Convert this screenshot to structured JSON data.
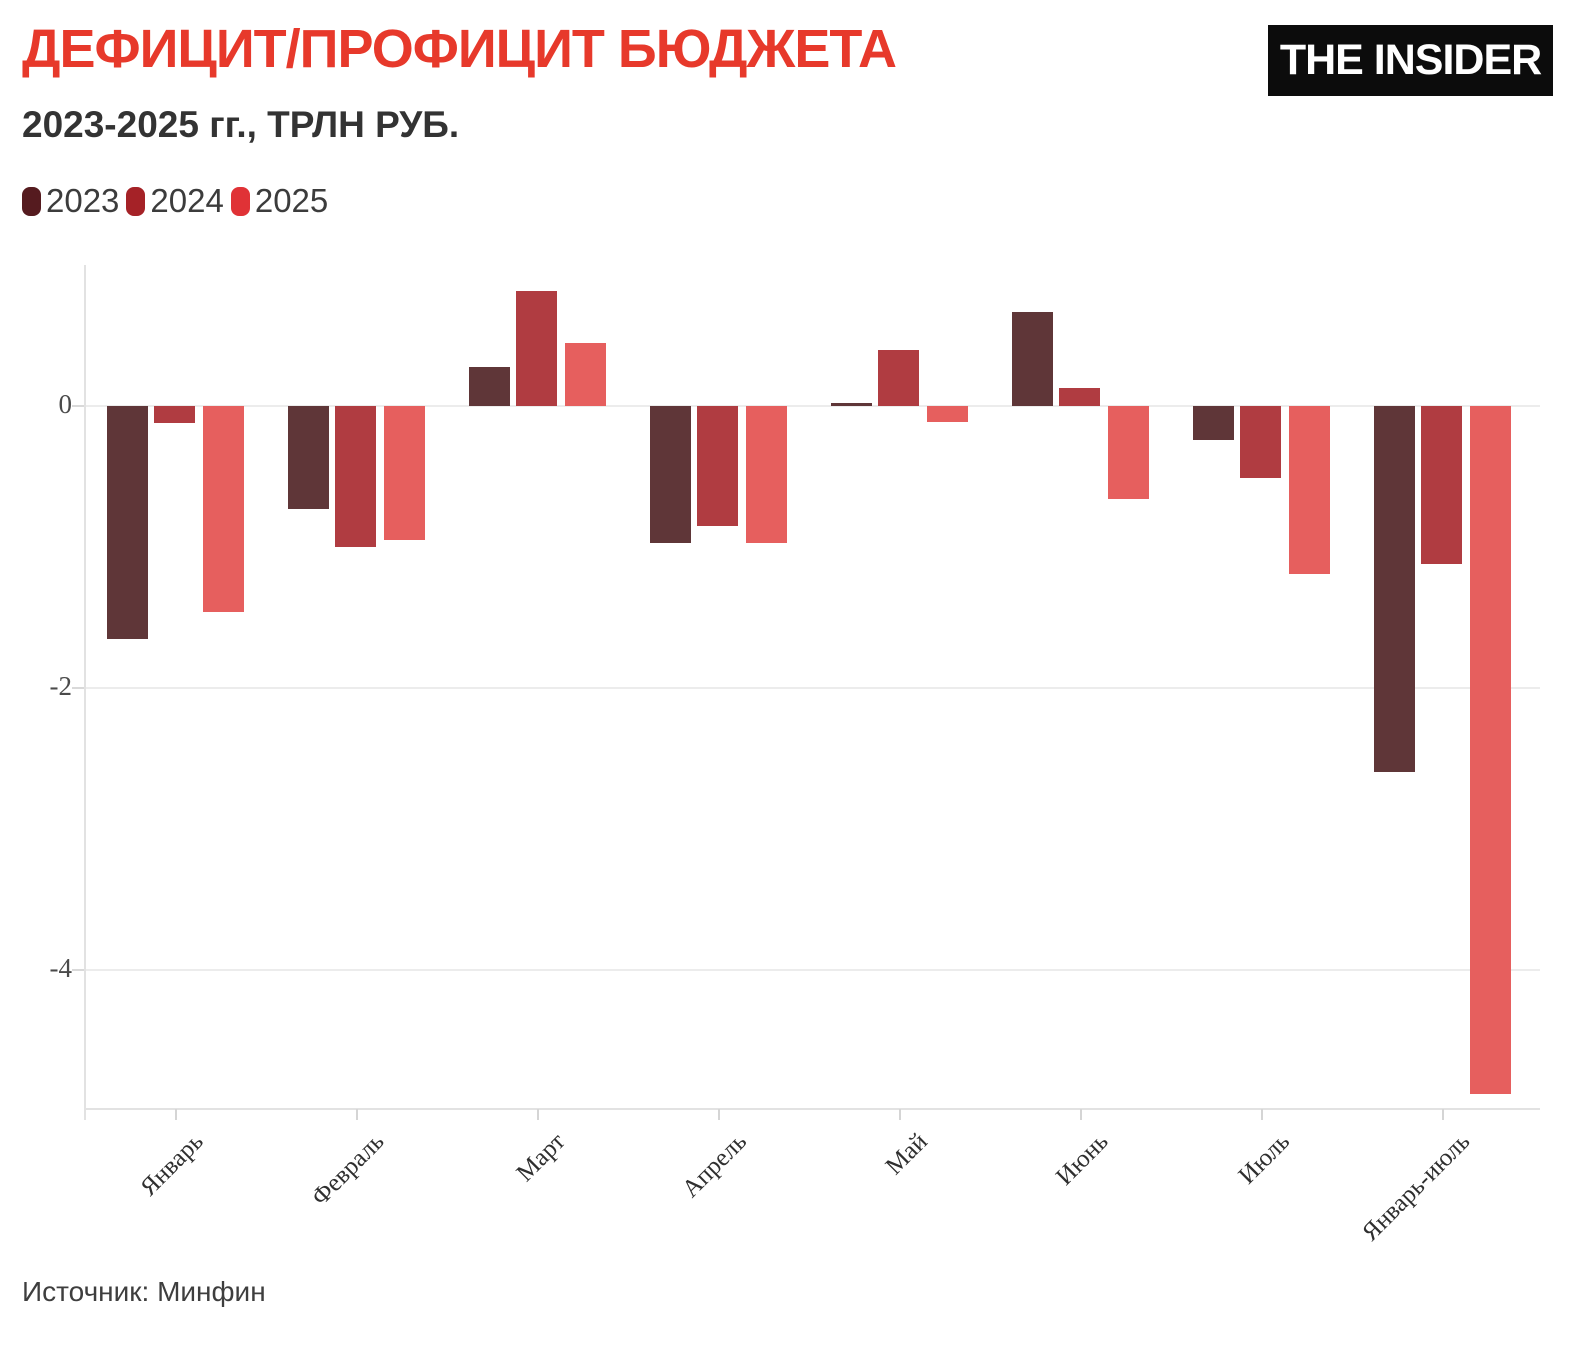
{
  "header": {
    "title": "ДЕФИЦИТ/ПРОФИЦИТ БЮДЖЕТА",
    "title_color": "#e7392b",
    "subtitle": "2023-2025 гг., ТРЛН РУБ.",
    "logo_text": "THE INSIDER"
  },
  "legend": [
    {
      "label": "2023",
      "color": "#551b1f"
    },
    {
      "label": "2024",
      "color": "#a52227"
    },
    {
      "label": "2025",
      "color": "#e03236"
    }
  ],
  "source": "Источник: Минфин",
  "chart_data": {
    "type": "bar",
    "title": "ДЕФИЦИТ/ПРОФИЦИТ БЮДЖЕТА",
    "subtitle": "2023-2025 гг., ТРЛН РУБ.",
    "unit": "трлн руб.",
    "categories": [
      "Январь",
      "Февраль",
      "Март",
      "Апрель",
      "Май",
      "Июнь",
      "Июль",
      "Январь-июль"
    ],
    "series": [
      {
        "name": "2023",
        "color": "#5f3638",
        "legend_color": "#551b1f",
        "values": [
          -1.65,
          -0.73,
          0.28,
          -0.97,
          0.02,
          0.67,
          -0.24,
          -2.6
        ]
      },
      {
        "name": "2024",
        "color": "#b03c41",
        "legend_color": "#a52227",
        "values": [
          -0.12,
          -1.0,
          0.82,
          -0.85,
          0.4,
          0.13,
          -0.51,
          -1.12
        ]
      },
      {
        "name": "2025",
        "color": "#e65f5e",
        "legend_color": "#e03236",
        "values": [
          -1.46,
          -0.95,
          0.45,
          -0.97,
          -0.11,
          -0.66,
          -1.19,
          -4.88
        ]
      }
    ],
    "ylim": [
      1,
      -5
    ],
    "yticks": [
      0,
      -2,
      -4
    ],
    "grid": true,
    "legend_position": "top-left",
    "xlabel": "",
    "ylabel": ""
  }
}
